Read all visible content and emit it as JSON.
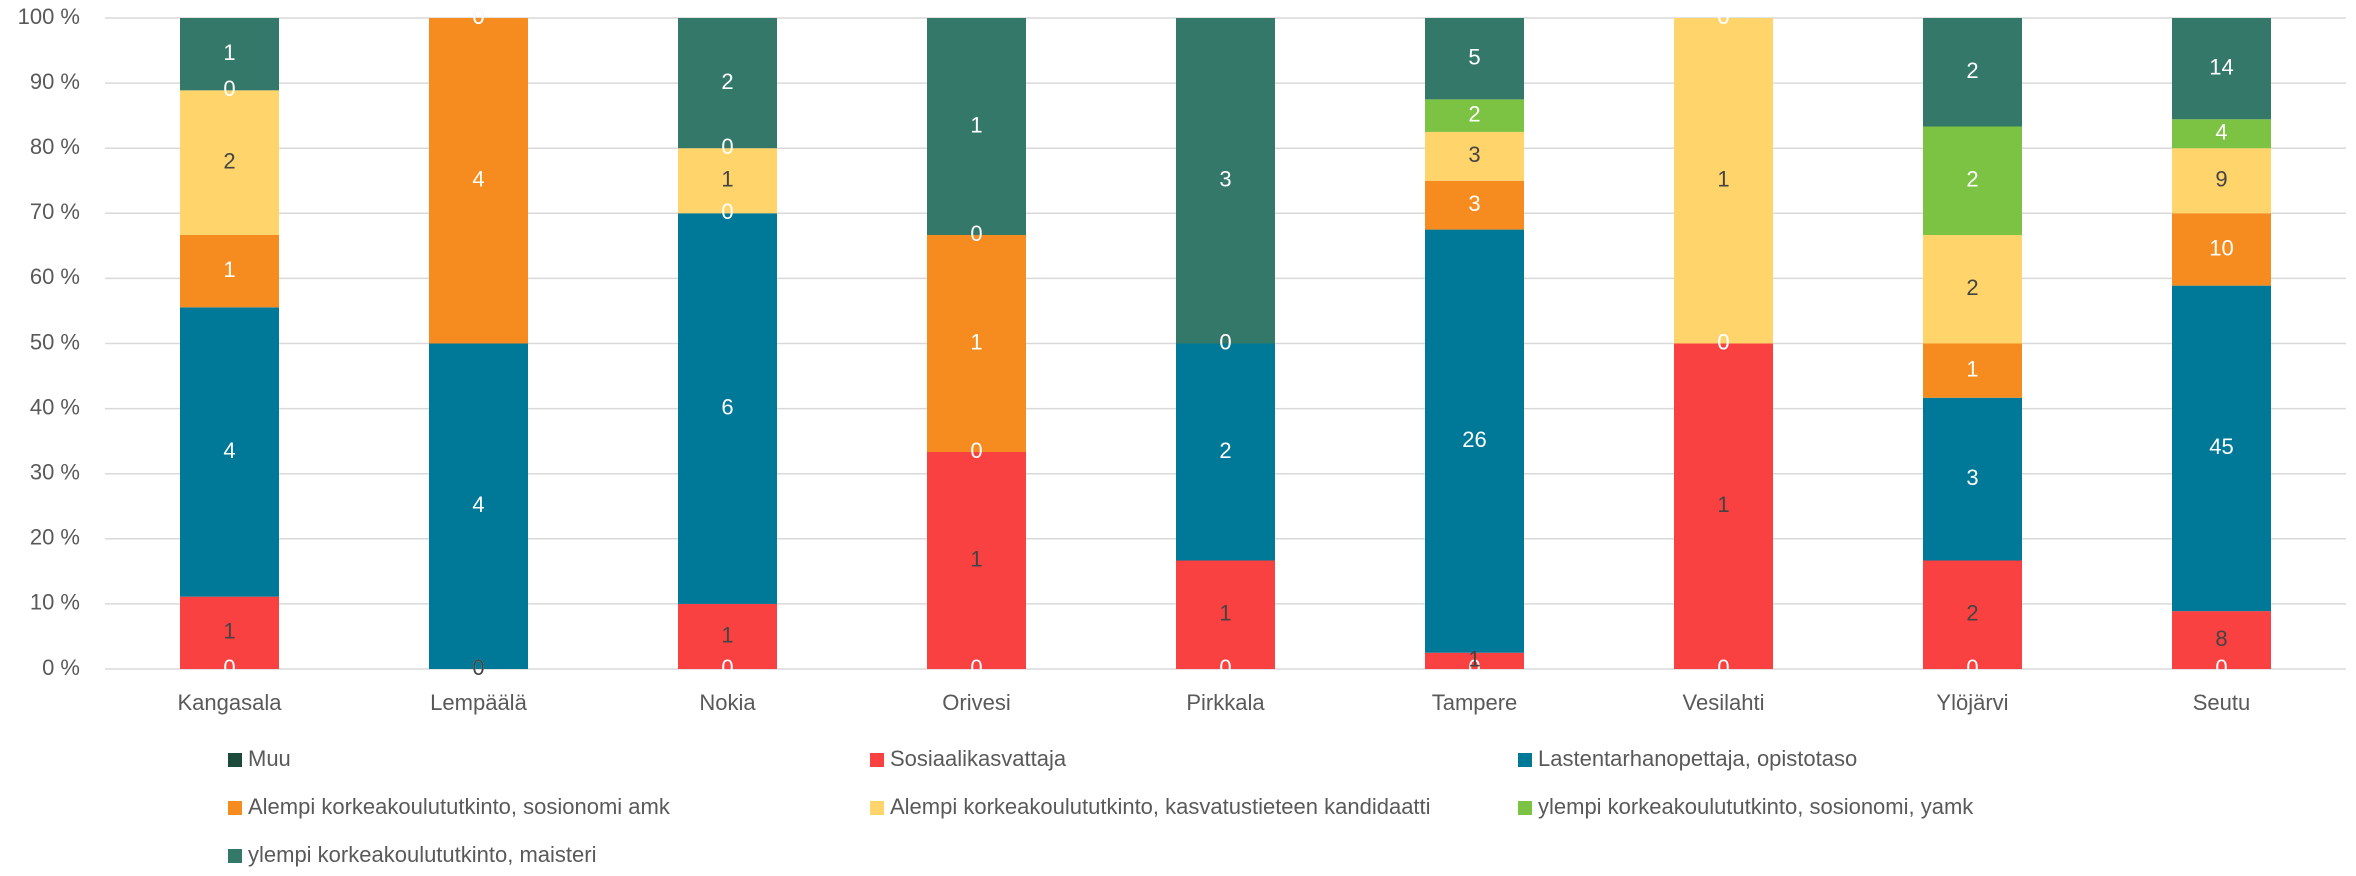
{
  "chart_data": {
    "type": "bar",
    "stacking": "percent",
    "categories": [
      "Kangasala",
      "Lempäälä",
      "Nokia",
      "Orivesi",
      "Pirkkala",
      "Tampere",
      "Vesilahti",
      "Ylöjärvi",
      "Seutu"
    ],
    "series": [
      {
        "name": "Muu",
        "color": "#1d4a3b",
        "label_color": "#ffffff",
        "values": [
          0,
          0,
          0,
          0,
          0,
          0,
          0,
          0,
          0
        ]
      },
      {
        "name": "Sosiaalikasvattaja",
        "color": "#f94141",
        "label_color": "#444444",
        "values": [
          1,
          0,
          1,
          1,
          1,
          1,
          1,
          2,
          8
        ]
      },
      {
        "name": "Lastentarhanopettaja, opistotaso",
        "color": "#007898",
        "label_color": "#ffffff",
        "values": [
          4,
          4,
          6,
          0,
          2,
          26,
          0,
          3,
          45
        ]
      },
      {
        "name": "Alempi korkeakoulututkinto, sosionomi amk",
        "color": "#f68c1f",
        "label_color": "#ffffff",
        "values": [
          1,
          4,
          0,
          1,
          0,
          3,
          0,
          1,
          10
        ]
      },
      {
        "name": "Alempi korkeakoulututkinto, kasvatustieteen kandidaatti",
        "color": "#fed46b",
        "label_color": "#444444",
        "values": [
          2,
          0,
          1,
          0,
          0,
          3,
          1,
          2,
          9
        ]
      },
      {
        "name": "ylempi korkeakoulututkinto, sosionomi, yamk",
        "color": "#7cc243",
        "label_color": "#ffffff",
        "values": [
          0,
          0,
          0,
          0,
          0,
          2,
          0,
          2,
          4
        ]
      },
      {
        "name": "ylempi korkeakoulututkinto, maisteri",
        "color": "#34786a",
        "label_color": "#ffffff",
        "values": [
          1,
          0,
          2,
          1,
          3,
          5,
          0,
          2,
          14
        ]
      }
    ],
    "ylim": [
      0,
      100
    ],
    "yticks": [
      {
        "value": 0,
        "label": "0 %"
      },
      {
        "value": 10,
        "label": "10 %"
      },
      {
        "value": 20,
        "label": "20 %"
      },
      {
        "value": 30,
        "label": "30 %"
      },
      {
        "value": 40,
        "label": "40 %"
      },
      {
        "value": 50,
        "label": "50 %"
      },
      {
        "value": 60,
        "label": "60 %"
      },
      {
        "value": 70,
        "label": "70 %"
      },
      {
        "value": 80,
        "label": "80 %"
      },
      {
        "value": 90,
        "label": "90 %"
      },
      {
        "value": 100,
        "label": "100 %"
      }
    ],
    "grid": true,
    "legend": "bottom"
  }
}
